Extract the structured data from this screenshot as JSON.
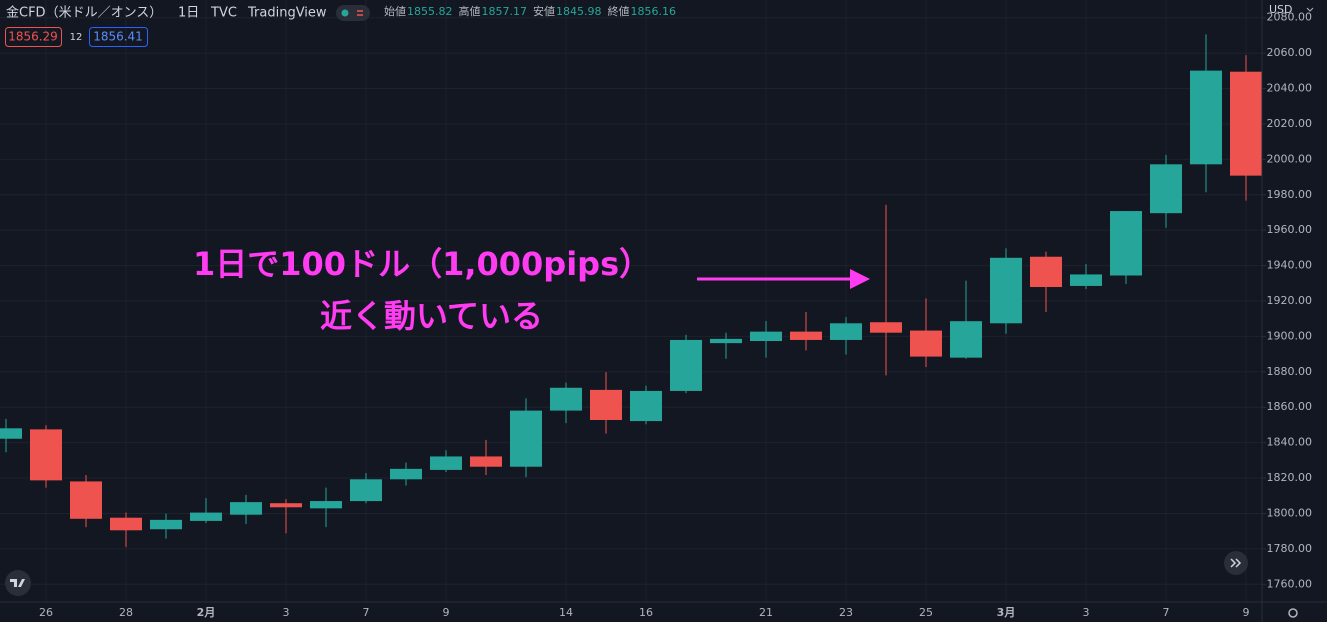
{
  "header": {
    "symbol": "金CFD（米ドル／オンス）",
    "interval": "1日",
    "source": "TVC",
    "platform": "TradingView",
    "ohlc": [
      {
        "label": "始値",
        "value": 1855.82
      },
      {
        "label": "高値",
        "value": 1857.17
      },
      {
        "label": "安値",
        "value": 1845.98
      },
      {
        "label": "終値",
        "value": 1856.16
      }
    ],
    "bid": 1856.29,
    "spread": 12,
    "ask": 1856.41,
    "currency": "USD"
  },
  "chart_data": {
    "type": "candlestick",
    "categories": [
      null,
      "26",
      null,
      "28",
      null,
      "2月",
      null,
      "3",
      null,
      "7",
      null,
      "9",
      null,
      null,
      "14",
      null,
      "16",
      null,
      null,
      "21",
      null,
      "23",
      null,
      "25",
      null,
      "3月",
      null,
      "3",
      null,
      "7",
      null,
      "9"
    ],
    "open": [
      1842.2,
      1847.5,
      1818.1,
      1797.6,
      1791.1,
      1795.8,
      1799.3,
      1805.8,
      1802.9,
      1807.0,
      1819.3,
      1824.6,
      1832.2,
      1826.4,
      1858.1,
      1869.8,
      1852.2,
      1869.2,
      1896.2,
      1897.4,
      1902.7,
      1898.0,
      1908.0,
      1903.3,
      1888.0,
      1907.4,
      1945.0,
      1928.5,
      1934.4,
      1969.6,
      1997.2,
      2049.5
    ],
    "high": [
      1853.4,
      1849.8,
      1821.7,
      1800.5,
      1799.9,
      1808.7,
      1810.5,
      1808.1,
      1814.6,
      1822.8,
      1828.7,
      1835.7,
      1841.6,
      1865.1,
      1873.9,
      1879.8,
      1872.1,
      1900.9,
      1902.1,
      1908.6,
      1913.8,
      1910.9,
      1974.3,
      1921.5,
      1931.5,
      1949.7,
      1947.9,
      1940.8,
      1970.8,
      2002.5,
      2070.6,
      2058.9
    ],
    "low": [
      1834.6,
      1814.6,
      1792.3,
      1781.1,
      1785.8,
      1794.6,
      1794.1,
      1788.8,
      1792.3,
      1805.8,
      1815.8,
      1823.4,
      1821.7,
      1820.5,
      1851.0,
      1845.1,
      1850.4,
      1868.0,
      1887.4,
      1888.0,
      1892.1,
      1889.8,
      1878.0,
      1882.7,
      1887.4,
      1901.5,
      1913.8,
      1926.8,
      1929.7,
      1961.4,
      1981.4,
      1976.7
    ],
    "close": [
      1848.1,
      1818.7,
      1797.0,
      1790.5,
      1796.4,
      1800.5,
      1806.4,
      1803.5,
      1807.0,
      1819.3,
      1825.2,
      1832.2,
      1826.4,
      1858.1,
      1871.0,
      1852.8,
      1869.2,
      1898.0,
      1898.6,
      1902.7,
      1898.0,
      1907.4,
      1902.1,
      1888.6,
      1908.6,
      1944.4,
      1927.9,
      1935.0,
      1970.8,
      1997.2,
      2050.1,
      1990.8
    ],
    "up_color": "#26a69a",
    "down_color": "#ef5350",
    "ylim": [
      1750,
      2090
    ],
    "yticks": [
      {
        "value": 1760,
        "label": "1760.00"
      },
      {
        "value": 1780,
        "label": "1780.00"
      },
      {
        "value": 1800,
        "label": "1800.00"
      },
      {
        "value": 1820,
        "label": "1820.00"
      },
      {
        "value": 1840,
        "label": "1840.00"
      },
      {
        "value": 1860,
        "label": "1860.00"
      },
      {
        "value": 1880,
        "label": "1880.00"
      },
      {
        "value": 1900,
        "label": "1900.00"
      },
      {
        "value": 1920,
        "label": "1920.00"
      },
      {
        "value": 1940,
        "label": "1940.00"
      },
      {
        "value": 1960,
        "label": "1960.00"
      },
      {
        "value": 1980,
        "label": "1980.00"
      },
      {
        "value": 2000,
        "label": "2000.00"
      },
      {
        "value": 2020,
        "label": "2020.00"
      },
      {
        "value": 2040,
        "label": "2040.00"
      },
      {
        "value": 2060,
        "label": "2060.00"
      },
      {
        "value": 2080,
        "label": "2080.00"
      }
    ],
    "grid": true,
    "annotations": [
      "1日で100ドル（1,000pips）",
      "近く動いている"
    ]
  }
}
